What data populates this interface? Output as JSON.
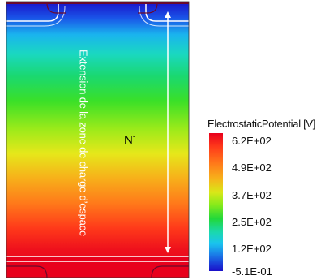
{
  "region_label": "N",
  "region_label_sup": "-",
  "annotation": "Extension de la zone de charge d’espace",
  "legend": {
    "title": "ElectrostaticPotential [V]",
    "ticks": [
      "6.2E+02",
      "4.9E+02",
      "3.7E+02",
      "2.5E+02",
      "1.2E+02",
      "-5.1E-01"
    ]
  },
  "colors": {
    "high": "#e8001c",
    "low": "#1a10c8",
    "contour": "#ffffff",
    "electrode": "#6b0a2a"
  }
}
